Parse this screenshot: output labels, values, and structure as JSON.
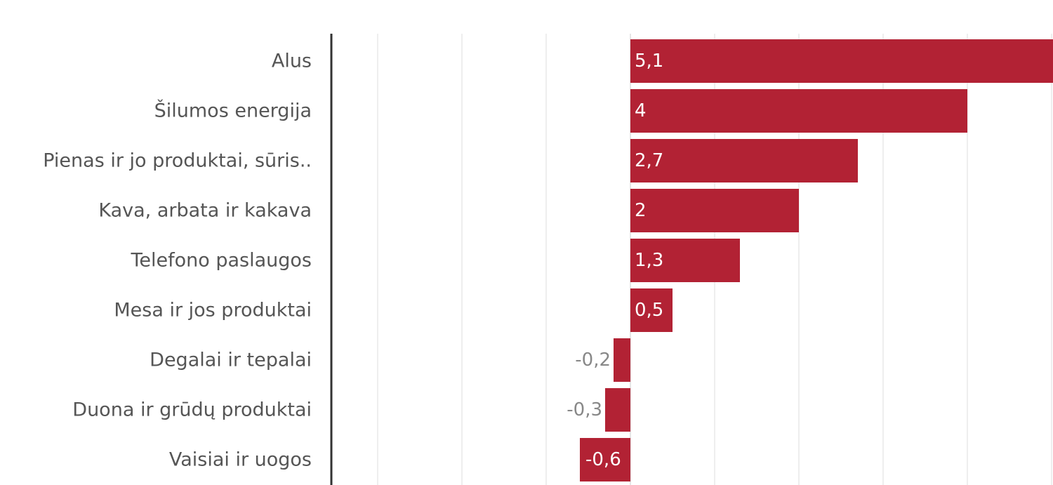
{
  "chart_data": {
    "type": "bar",
    "orientation": "horizontal",
    "title": "",
    "xlabel": "",
    "ylabel": "",
    "categories": [
      "Alus",
      "Šilumos energija",
      "Pienas ir jo produktai, sūris..",
      "Kava, arbata ir kakava",
      "Telefono paslaugos",
      "Mesa ir jos produktai",
      "Degalai ir tepalai",
      "Duona ir grūdų produktai",
      "Vaisiai ir uogos"
    ],
    "values": [
      5.1,
      4,
      2.7,
      2,
      1.3,
      0.5,
      -0.2,
      -0.3,
      -0.6
    ],
    "value_labels": [
      "5,1",
      "4",
      "2,7",
      "2",
      "1,3",
      "0,5",
      "-0,2",
      "-0,3",
      "-0,6"
    ],
    "xlim": [
      -3.5,
      5.0
    ],
    "grid": true,
    "bar_color": "#b22234"
  }
}
